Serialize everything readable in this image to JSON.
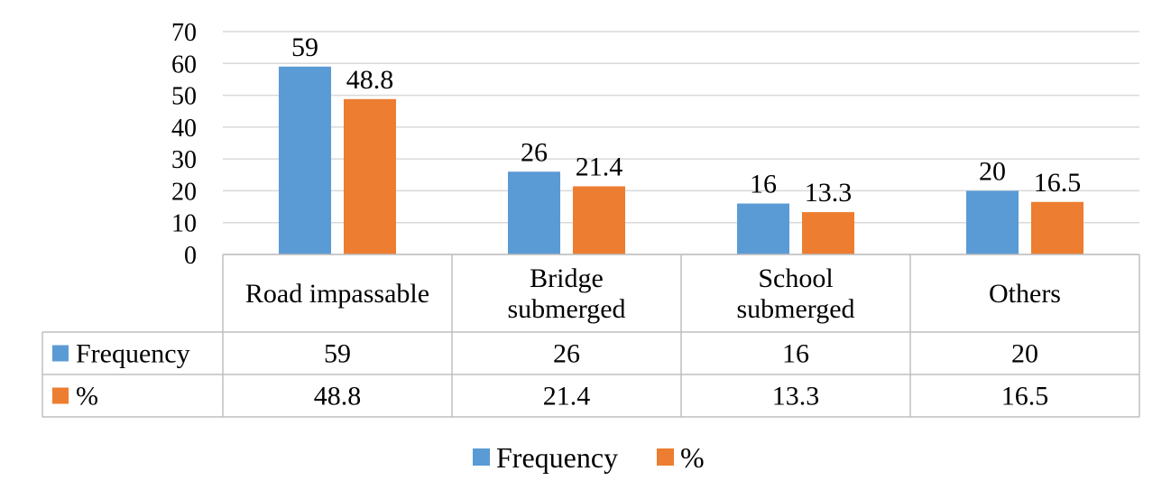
{
  "chart_data": {
    "type": "bar",
    "categories": [
      [
        "Road impassable"
      ],
      [
        "Bridge",
        "submerged"
      ],
      [
        "School",
        "submerged"
      ],
      [
        "Others"
      ]
    ],
    "series": [
      {
        "name": "Frequency",
        "values": [
          59,
          26,
          16,
          20
        ],
        "labels": [
          "59",
          "26",
          "16",
          "20"
        ],
        "color": "#5B9BD5"
      },
      {
        "name": "%",
        "values": [
          48.8,
          21.4,
          13.3,
          16.5
        ],
        "labels": [
          "48.8",
          "21.4",
          "13.3",
          "16.5"
        ],
        "color": "#ED7D31"
      }
    ],
    "ylim": [
      0,
      70
    ],
    "yticks": [
      "0",
      "10",
      "20",
      "30",
      "40",
      "50",
      "60",
      "70"
    ],
    "grid": true,
    "data_table": true,
    "legend_position": "bottom"
  }
}
